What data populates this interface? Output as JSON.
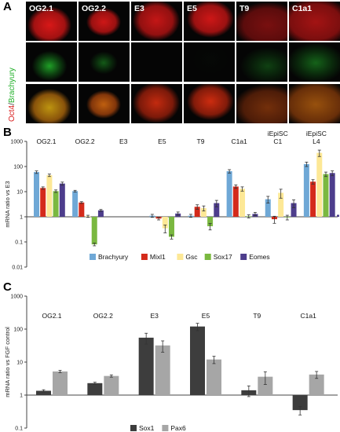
{
  "panels": {
    "a": "A",
    "b": "B",
    "c": "C"
  },
  "panel_a": {
    "columns": [
      "OG2.1",
      "OG2.2",
      "E3",
      "E5",
      "T9",
      "C1a1"
    ],
    "row_title_red": "Oct4",
    "row_title_sep": "/",
    "row_title_green": "Brachyury",
    "colors": {
      "red": "#d81818",
      "green": "#22b02a",
      "merge": "#c8a010",
      "bg": "#050505"
    }
  },
  "chart_data": [
    {
      "type": "bar",
      "panel": "B",
      "categories": [
        "OG2.1",
        "OG2.2",
        "E3",
        "E5",
        "T9",
        "C1a1",
        "iEpiSC C1",
        "iEpiSC L4"
      ],
      "ylabel": "mRNA ratio vs E3",
      "yscale": "log",
      "ylim": [
        0.01,
        1000
      ],
      "yticks": [
        "1000",
        "100",
        "10",
        "1",
        "0.1",
        "0.01"
      ],
      "legend_position": "bottom",
      "series": [
        {
          "name": "Brachyury",
          "color": "#6fa8d6",
          "values": [
            60,
            10.5,
            null,
            1.1,
            1.1,
            65,
            5,
            125
          ],
          "errors": [
            7,
            0.8,
            null,
            0.15,
            0.15,
            10,
            1.5,
            25
          ]
        },
        {
          "name": "Mixl1",
          "color": "#d42a1a",
          "values": [
            14,
            3.7,
            null,
            0.85,
            2.5,
            16,
            0.8,
            25
          ],
          "errors": [
            1.5,
            0.3,
            null,
            0.1,
            0.5,
            2.5,
            0.25,
            5
          ]
        },
        {
          "name": "Gsc",
          "color": "#fde896",
          "values": [
            45,
            1.05,
            null,
            0.35,
            2.2,
            13,
            9,
            350
          ],
          "errors": [
            5,
            0.1,
            null,
            0.12,
            0.5,
            2.5,
            3.5,
            100
          ]
        },
        {
          "name": "Sox17",
          "color": "#7ab840",
          "values": [
            10.5,
            0.08,
            null,
            0.16,
            0.42,
            1.05,
            0.95,
            50
          ],
          "errors": [
            1.2,
            0.01,
            null,
            0.03,
            0.12,
            0.15,
            0.2,
            10
          ]
        },
        {
          "name": "Eomes",
          "color": "#4d3d8c",
          "values": [
            21,
            1.8,
            null,
            1.35,
            3.5,
            1.3,
            3.5,
            55
          ],
          "errors": [
            3,
            0.15,
            null,
            0.2,
            1.0,
            0.2,
            1.2,
            12
          ]
        }
      ],
      "trailing_bar": {
        "value": 1.2,
        "color": "#4d3d8c"
      }
    },
    {
      "type": "bar",
      "panel": "C",
      "categories": [
        "OG2.1",
        "OG2.2",
        "E3",
        "E5",
        "T9",
        "C1a1"
      ],
      "ylabel": "mRNA ratio vs FGF control",
      "yscale": "log",
      "ylim": [
        0.1,
        1000
      ],
      "yticks": [
        "1000",
        "100",
        "10",
        "1",
        "0.1"
      ],
      "legend_position": "bottom",
      "series": [
        {
          "name": "Sox1",
          "color": "#3d3d3d",
          "values": [
            1.35,
            2.3,
            55,
            120,
            1.4,
            0.35
          ],
          "errors": [
            0.1,
            0.15,
            20,
            30,
            0.5,
            0.1
          ]
        },
        {
          "name": "Pax6",
          "color": "#a6a6a6",
          "values": [
            5.2,
            3.8,
            32,
            12,
            3.6,
            4.2
          ],
          "errors": [
            0.4,
            0.3,
            12,
            3,
            1.5,
            1.0
          ]
        }
      ]
    }
  ]
}
